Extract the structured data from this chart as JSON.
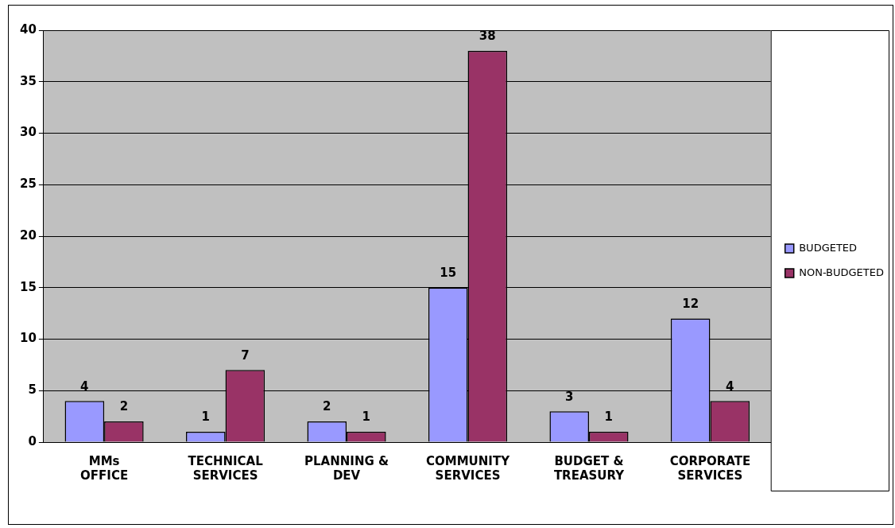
{
  "chart_data": {
    "type": "bar",
    "categories": [
      "MMs OFFICE",
      "TECHNICAL SERVICES",
      "PLANNING & DEV",
      "COMMUNITY SERVICES",
      "BUDGET & TREASURY",
      "CORPORATE SERVICES"
    ],
    "series": [
      {
        "name": "BUDGETED",
        "color": "#9999ff",
        "values": [
          4,
          1,
          2,
          15,
          3,
          12
        ]
      },
      {
        "name": "NON-BUDGETED",
        "color": "#993366",
        "values": [
          2,
          7,
          1,
          38,
          1,
          4
        ]
      }
    ],
    "ylim": [
      0,
      40
    ],
    "yticks": [
      0,
      5,
      10,
      15,
      20,
      25,
      30,
      35,
      40
    ],
    "grid": "y",
    "legend": "right",
    "data_labels": true
  }
}
